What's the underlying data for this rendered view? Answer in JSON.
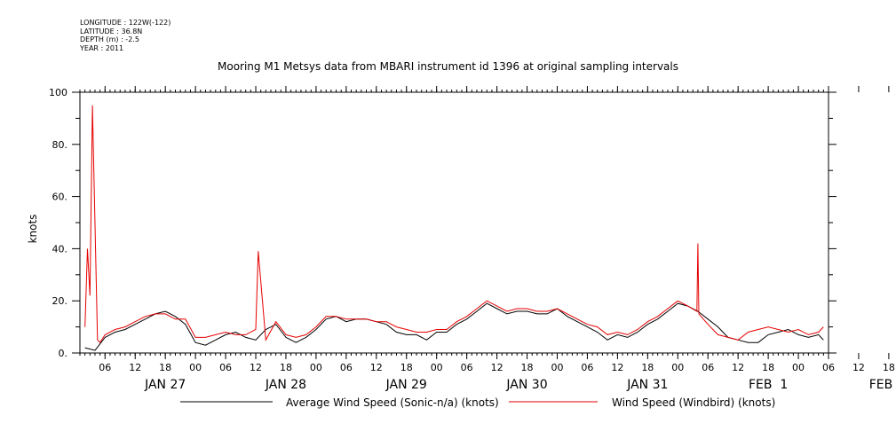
{
  "meta": {
    "longitude": "LONGITUDE : 122W(-122)",
    "latitude": "LATITUDE : 36.8N",
    "depth": "DEPTH (m) : -2.5",
    "year": "YEAR : 2011"
  },
  "chart_data": {
    "type": "line",
    "title": "Mooring M1 Metsys data from MBARI instrument id 1396 at original sampling intervals",
    "ylabel": "knots",
    "xlabel": "",
    "ylim": [
      0,
      100
    ],
    "yticks": [
      "0.",
      "20.",
      "40.",
      "60.",
      "80.",
      "100"
    ],
    "xlim_hours": [
      -5,
      144
    ],
    "hour_ticks": [
      "06",
      "12",
      "18",
      "00",
      "06",
      "12",
      "18",
      "00",
      "06",
      "12",
      "18",
      "00",
      "06",
      "12",
      "18",
      "00",
      "06",
      "12",
      "18",
      "00",
      "06",
      "12",
      "18",
      "00",
      "06",
      "12",
      "18",
      "00"
    ],
    "day_labels": [
      "JAN 27",
      "JAN 28",
      "JAN 29",
      "JAN 30",
      "JAN 31",
      "FEB  1",
      "FEB  2"
    ],
    "grid": false,
    "legend_position": "bottom",
    "series": [
      {
        "name": "Average Wind Speed (Sonic-n/a) (knots)",
        "color": "#000000",
        "x_hours": [
          -4,
          -2,
          0,
          2,
          4,
          6,
          8,
          10,
          12,
          14,
          16,
          18,
          20,
          22,
          24,
          26,
          28,
          30,
          32,
          34,
          36,
          38,
          40,
          42,
          44,
          46,
          48,
          50,
          52,
          54,
          56,
          58,
          60,
          62,
          64,
          66,
          68,
          70,
          72,
          74,
          76,
          78,
          80,
          82,
          84,
          86,
          88,
          90,
          92,
          94,
          96,
          98,
          100,
          102,
          104,
          106,
          108,
          110,
          112,
          114,
          116,
          118,
          120,
          122,
          124,
          126,
          128,
          130,
          132,
          134,
          136,
          138,
          140,
          142,
          143
        ],
        "values": [
          2,
          1,
          6,
          8,
          9,
          11,
          13,
          15,
          16,
          14,
          11,
          4,
          3,
          5,
          7,
          8,
          6,
          5,
          9,
          11,
          6,
          4,
          6,
          9,
          13,
          14,
          12,
          13,
          13,
          12,
          11,
          8,
          7,
          7,
          5,
          8,
          8,
          11,
          13,
          16,
          19,
          17,
          15,
          16,
          16,
          15,
          15,
          17,
          14,
          12,
          10,
          8,
          5,
          7,
          6,
          8,
          11,
          13,
          16,
          19,
          18,
          16,
          13,
          10,
          6,
          5,
          4,
          4,
          7,
          8,
          9,
          7,
          6,
          7,
          5
        ]
      },
      {
        "name": "Wind Speed (Windbird) (knots)",
        "color": "#e60000",
        "x_hours": [
          -4,
          -3.5,
          -3,
          -2.5,
          -2,
          -1.5,
          -1,
          0,
          2,
          4,
          6,
          8,
          10,
          12,
          14,
          16,
          18,
          20,
          22,
          24,
          26,
          28,
          30,
          30.5,
          32,
          34,
          36,
          38,
          40,
          42,
          44,
          46,
          48,
          50,
          52,
          54,
          56,
          58,
          60,
          62,
          64,
          66,
          68,
          70,
          72,
          74,
          76,
          78,
          80,
          82,
          84,
          86,
          88,
          90,
          92,
          94,
          96,
          98,
          100,
          102,
          104,
          106,
          108,
          110,
          112,
          114,
          116,
          117.8,
          118,
          118.2,
          120,
          122,
          124,
          126,
          128,
          130,
          132,
          134,
          136,
          138,
          140,
          142,
          143
        ],
        "values": [
          10,
          40,
          22,
          95,
          49,
          5,
          4,
          7,
          9,
          10,
          12,
          14,
          15,
          15,
          13,
          13,
          6,
          6,
          7,
          8,
          7,
          7,
          9,
          39,
          5,
          12,
          7,
          6,
          7,
          10,
          14,
          14,
          13,
          13,
          13,
          12,
          12,
          10,
          9,
          8,
          8,
          9,
          9,
          12,
          14,
          17,
          20,
          18,
          16,
          17,
          17,
          16,
          16,
          17,
          15,
          13,
          11,
          10,
          7,
          8,
          7,
          9,
          12,
          14,
          17,
          20,
          18,
          16,
          42,
          15,
          11,
          7,
          6,
          5,
          8,
          9,
          10,
          9,
          8,
          9,
          7,
          8,
          10
        ]
      }
    ]
  }
}
